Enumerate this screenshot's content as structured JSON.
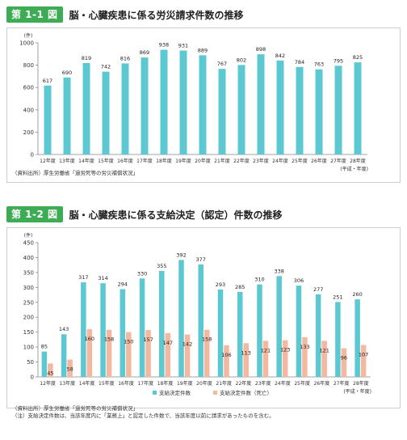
{
  "figure1": {
    "number": "第 1-1 図",
    "title": "脳・心臓疾患に係る労災請求件数の推移",
    "y_unit": "(件)",
    "x_unit": "(平成・年度)",
    "source": "（資料出所）厚生労働省「過労死等の労災補償状況」",
    "chart_data": {
      "type": "bar",
      "categories": [
        "12年度",
        "13年度",
        "14年度",
        "15年度",
        "16年度",
        "17年度",
        "18年度",
        "19年度",
        "20年度",
        "21年度",
        "22年度",
        "23年度",
        "24年度",
        "25年度",
        "26年度",
        "27年度",
        "28年度"
      ],
      "series": [
        {
          "values": [
            617,
            690,
            819,
            742,
            816,
            869,
            938,
            931,
            889,
            767,
            802,
            898,
            842,
            784,
            763,
            795,
            825
          ],
          "color": "#5cc8d2"
        }
      ],
      "ylim": [
        0,
        1000
      ],
      "yticks": [
        0,
        200,
        400,
        600,
        800,
        1000
      ],
      "grid": false
    }
  },
  "figure2": {
    "number": "第 1-2 図",
    "title": "脳・心臓疾患に係る支給決定（認定）件数の推移",
    "y_unit": "(件)",
    "x_unit": "(平成・年度)",
    "source": "（資料出所）厚生労働省「過労死等の労災補償状況」",
    "note": "（注）支給決定件数は、当該年度内に「業務上」と認定した件数で、当該年度以前に請求があったものを含む。",
    "chart_data": {
      "type": "bar",
      "categories": [
        "12年度",
        "13年度",
        "14年度",
        "15年度",
        "16年度",
        "17年度",
        "18年度",
        "19年度",
        "20年度",
        "21年度",
        "22年度",
        "23年度",
        "24年度",
        "25年度",
        "26年度",
        "27年度",
        "28年度"
      ],
      "series": [
        {
          "name": "支給決定件数",
          "values": [
            85,
            143,
            317,
            314,
            294,
            330,
            355,
            392,
            377,
            293,
            285,
            310,
            338,
            306,
            277,
            251,
            260
          ],
          "color": "#5cc8d2"
        },
        {
          "name": "支給決定件数（死亡）",
          "values": [
            45,
            58,
            160,
            158,
            150,
            157,
            147,
            142,
            158,
            106,
            113,
            121,
            123,
            133,
            121,
            96,
            107
          ],
          "color": "#f4b7a0"
        }
      ],
      "ylim": [
        0,
        450
      ],
      "yticks": [
        0,
        50,
        100,
        150,
        200,
        250,
        300,
        350,
        400,
        450
      ],
      "legend": "bottom",
      "grid": false
    }
  }
}
